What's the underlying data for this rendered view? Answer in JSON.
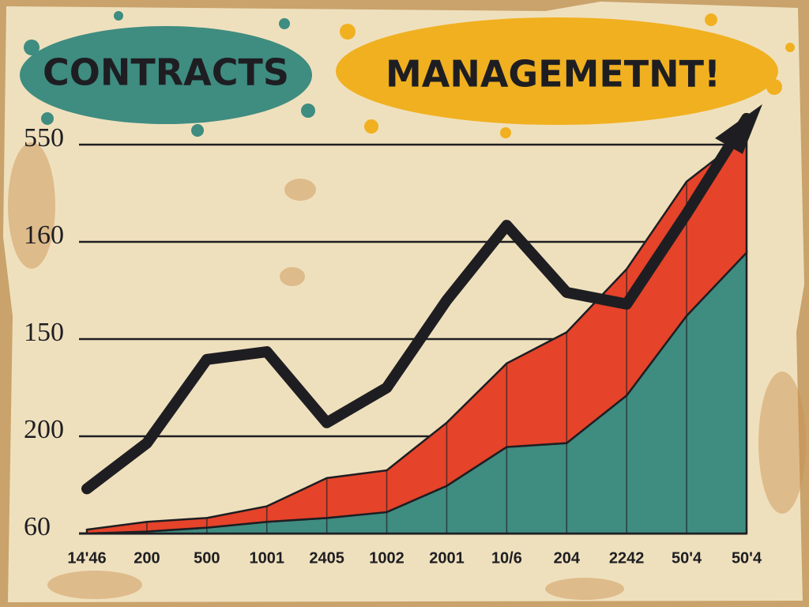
{
  "chart_data": {
    "type": "area",
    "title": [
      "CONTRACTS",
      "MANAGEMETNT!"
    ],
    "categories": [
      "14'46",
      "200",
      "500",
      "1001",
      "2405",
      "1002",
      "2001",
      "10/6",
      "204",
      "2242",
      "50'4",
      "50'4"
    ],
    "series": [
      {
        "color": "#3f8c80",
        "values": [
          0,
          0.02,
          0.06,
          0.12,
          0.16,
          0.22,
          0.49,
          0.89,
          0.93,
          1.42,
          2.24,
          2.89
        ]
      },
      {
        "color": "#e5432a",
        "values": [
          0.04,
          0.1,
          0.1,
          0.16,
          0.41,
          0.43,
          0.65,
          0.86,
          1.14,
          1.3,
          1.38,
          1.21
        ]
      },
      {
        "type": "line",
        "color": "#1e1e22",
        "values": [
          0.46,
          0.93,
          1.79,
          1.87,
          1.14,
          1.5,
          2.4,
          3.17,
          2.48,
          2.36,
          3.29,
          4.27
        ]
      }
    ],
    "stacked": true,
    "ylim": [
      0,
      4.35
    ],
    "yticks": [
      {
        "value": 0,
        "label": "60"
      },
      {
        "value": 1,
        "label": "200"
      },
      {
        "value": 2,
        "label": "150"
      },
      {
        "value": 3,
        "label": "160"
      },
      {
        "value": 4,
        "label": "550"
      }
    ],
    "grid": true
  }
}
